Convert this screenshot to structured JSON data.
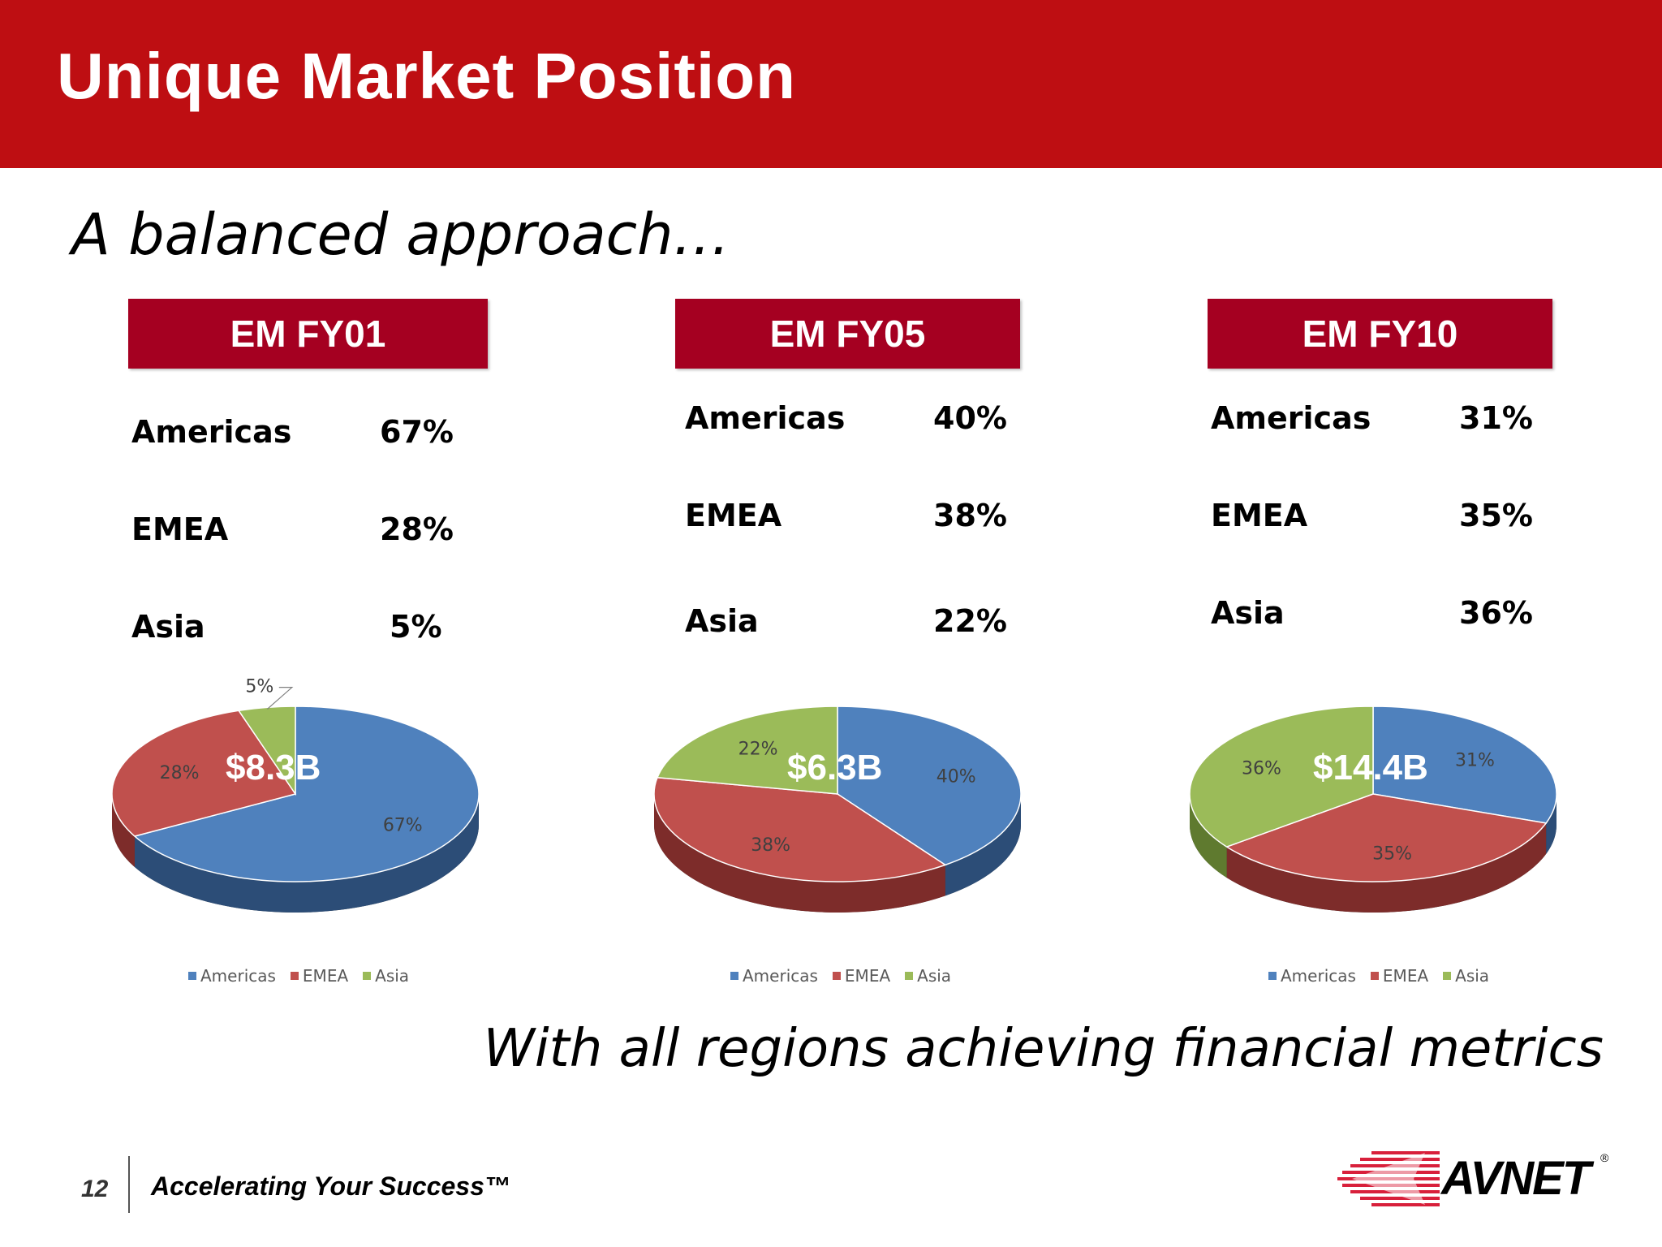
{
  "slide": {
    "title": "Unique Market Position",
    "subtitle": "A balanced approach…",
    "tagline": "With all regions achieving financial metrics",
    "page_number": "12",
    "slogan": "Accelerating Your Success™",
    "logo_text": "AVNET",
    "logo_reg": "®"
  },
  "colors": {
    "header": "#be0e12",
    "panel_header": "#a50021",
    "americas": "#4f81bd",
    "emea": "#c0504d",
    "asia": "#9bbb59"
  },
  "panels": [
    {
      "header": "EM FY01",
      "rows": [
        {
          "name": "Americas",
          "pct": "67%"
        },
        {
          "name": "EMEA",
          "pct": "28%"
        },
        {
          "name": "Asia",
          "pct": "5%"
        }
      ],
      "total_label": "$8.3B",
      "legend": [
        "Americas",
        "EMEA",
        "Asia"
      ]
    },
    {
      "header": "EM FY05",
      "rows": [
        {
          "name": "Americas",
          "pct": "40%"
        },
        {
          "name": "EMEA",
          "pct": "38%"
        },
        {
          "name": "Asia",
          "pct": "22%"
        }
      ],
      "total_label": "$6.3B",
      "legend": [
        "Americas",
        "EMEA",
        "Asia"
      ]
    },
    {
      "header": "EM FY10",
      "rows": [
        {
          "name": "Americas",
          "pct": "31%"
        },
        {
          "name": "EMEA",
          "pct": "35%"
        },
        {
          "name": "Asia",
          "pct": "36%"
        }
      ],
      "total_label": "$14.4B",
      "legend": [
        "Americas",
        "EMEA",
        "Asia"
      ]
    }
  ],
  "chart_data": [
    {
      "type": "pie",
      "title": "EM FY01",
      "categories": [
        "Americas",
        "EMEA",
        "Asia"
      ],
      "values": [
        67,
        28,
        5
      ],
      "data_labels": [
        "67%",
        "28%",
        "5%"
      ],
      "center_label": "$8.3B",
      "legend": "bottom",
      "three_d": true
    },
    {
      "type": "pie",
      "title": "EM FY05",
      "categories": [
        "Americas",
        "EMEA",
        "Asia"
      ],
      "values": [
        40,
        38,
        22
      ],
      "data_labels": [
        "40%",
        "38%",
        "22%"
      ],
      "center_label": "$6.3B",
      "legend": "bottom",
      "three_d": true
    },
    {
      "type": "pie",
      "title": "EM FY10",
      "categories": [
        "Americas",
        "EMEA",
        "Asia"
      ],
      "values": [
        31,
        35,
        36
      ],
      "data_labels": [
        "31%",
        "35%",
        "36%"
      ],
      "center_label": "$14.4B",
      "legend": "bottom",
      "three_d": true
    }
  ]
}
